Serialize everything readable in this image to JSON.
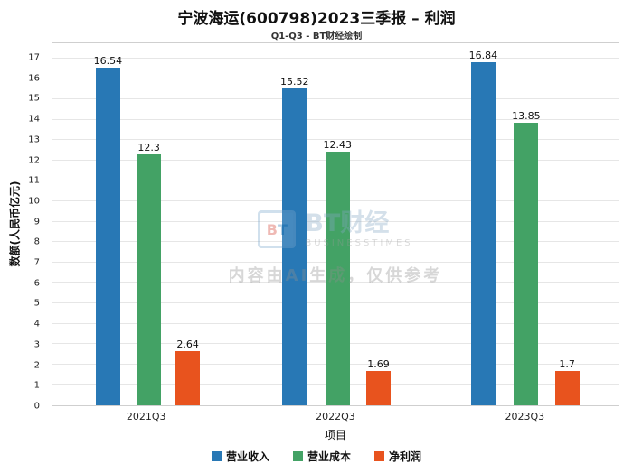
{
  "header": {
    "title": "宁波海运(600798)2023三季报 – 利润",
    "subtitle": "Q1-Q3 - BT财经绘制"
  },
  "chart_data": {
    "type": "bar",
    "title": "宁波海运(600798)2023三季报 – 利润",
    "subtitle": "Q1-Q3 - BT财经绘制",
    "categories": [
      "2021Q3",
      "2022Q3",
      "2023Q3"
    ],
    "series": [
      {
        "name": "营业收入",
        "color": "#2878b5",
        "values": [
          16.54,
          15.52,
          16.84
        ]
      },
      {
        "name": "营业成本",
        "color": "#43a265",
        "values": [
          12.3,
          12.43,
          13.85
        ]
      },
      {
        "name": "净利润",
        "color": "#e8531e",
        "values": [
          2.64,
          1.69,
          1.7
        ]
      }
    ],
    "xlabel": "项目",
    "ylabel": "数额(人民币亿元)",
    "ylim": [
      0,
      17.75
    ],
    "yticks": [
      0,
      1,
      2,
      3,
      4,
      5,
      6,
      7,
      8,
      9,
      10,
      11,
      12,
      13,
      14,
      15,
      16,
      17
    ],
    "grid": true,
    "legend_position": "bottom"
  },
  "watermark": {
    "logo_b": "B",
    "logo_t": "T",
    "brand": "BT财经",
    "brand_sub": "BUSINESSTIMES",
    "notice": "内容由AI生成，仅供参考"
  }
}
